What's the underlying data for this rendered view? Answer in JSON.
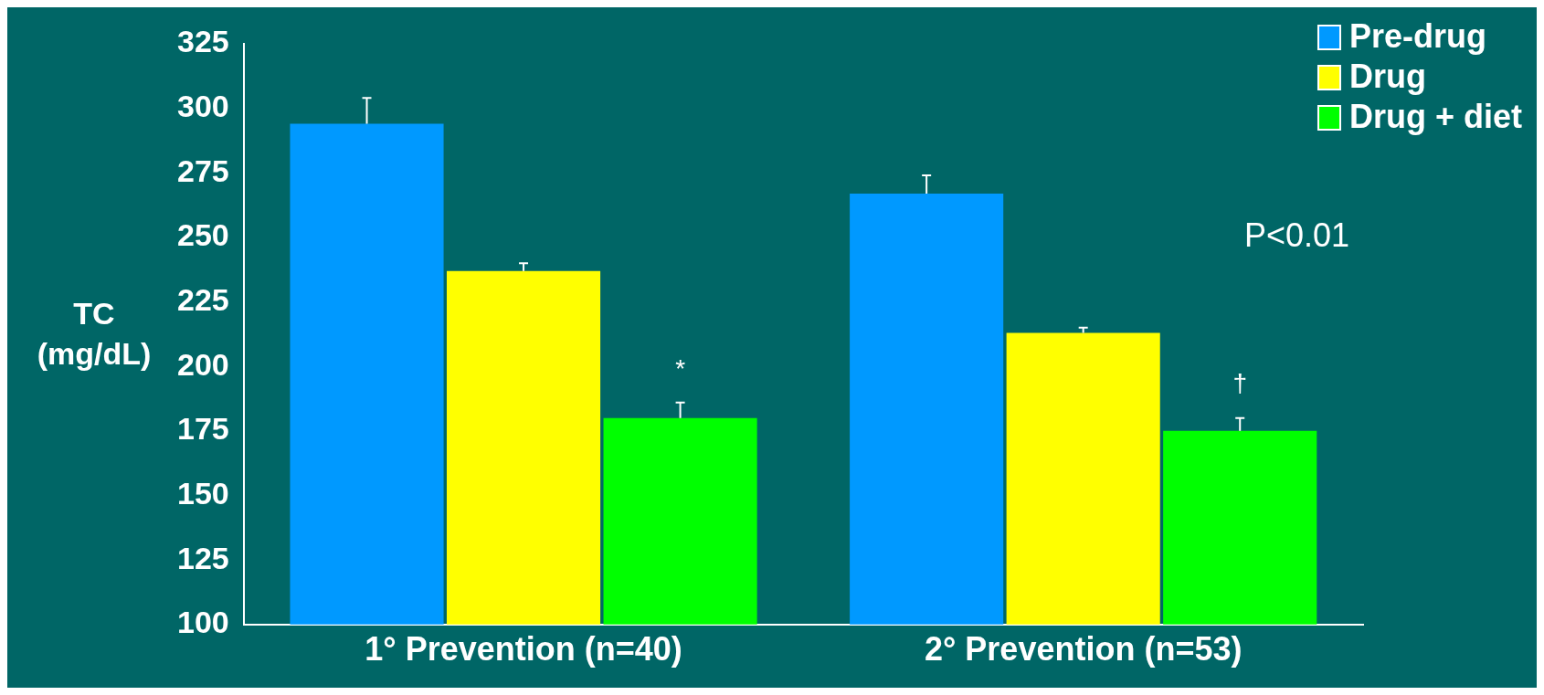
{
  "chart_data": {
    "type": "bar",
    "ylabel": "TC\n(mg/dL)",
    "categories": [
      "1° Prevention (n=40)",
      "2° Prevention (n=53)"
    ],
    "series": [
      {
        "name": "Pre-drug",
        "color": "#0099ff",
        "values": [
          294,
          267
        ],
        "errors": [
          [
            294,
            304
          ],
          [
            267,
            274
          ]
        ]
      },
      {
        "name": "Drug",
        "color": "#ffff00",
        "values": [
          237,
          213
        ],
        "errors": [
          [
            237,
            240
          ],
          [
            213,
            215
          ]
        ]
      },
      {
        "name": "Drug + diet",
        "color": "#00ff00",
        "values": [
          180,
          175
        ],
        "errors": [
          [
            180,
            186
          ],
          [
            175,
            180
          ]
        ]
      }
    ],
    "ylim": [
      100,
      325
    ],
    "yticks": [
      100,
      125,
      150,
      175,
      200,
      225,
      250,
      275,
      300,
      325
    ],
    "grid": false,
    "legend": "top right",
    "annotations": [
      "*",
      "†",
      "P<0.01"
    ]
  }
}
